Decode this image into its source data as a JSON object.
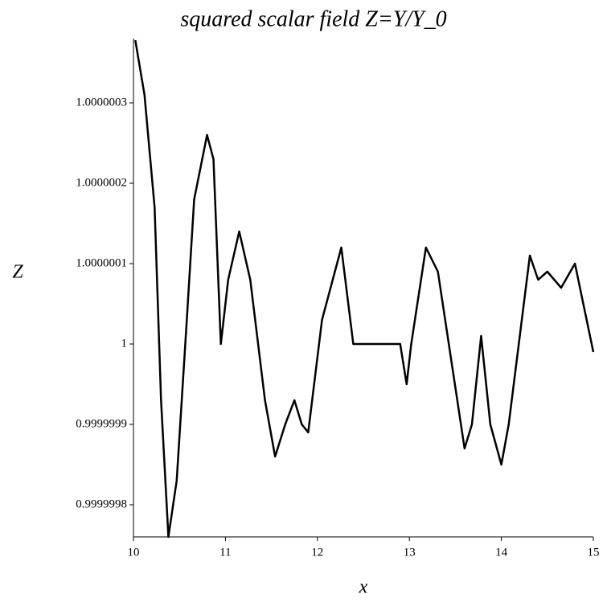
{
  "chart_data": {
    "type": "line",
    "title": "squared scalar field Z=Y/Y_0",
    "xlabel": "x",
    "ylabel": "Z",
    "x": [
      10.02,
      10.12,
      10.23,
      10.3,
      10.38,
      10.47,
      10.58,
      10.66,
      10.8,
      10.87,
      10.95,
      11.03,
      11.15,
      11.27,
      11.43,
      11.54,
      11.65,
      11.75,
      11.83,
      11.9,
      12.05,
      12.26,
      12.39,
      12.65,
      12.9,
      12.97,
      13.02,
      13.18,
      13.31,
      13.6,
      13.68,
      13.78,
      13.88,
      14.0,
      14.08,
      14.31,
      14.4,
      14.5,
      14.65,
      14.8,
      15.0
    ],
    "series": [
      {
        "name": "Z",
        "color": "#000000",
        "values": [
          1.000000378,
          1.00000031,
          1.00000017,
          0.99999993,
          0.99999976,
          0.99999983,
          1.00000003,
          1.00000018,
          1.00000026,
          1.00000023,
          1.0,
          1.00000008,
          1.00000014,
          1.00000008,
          0.99999993,
          0.99999986,
          0.9999999,
          0.99999993,
          0.9999999,
          0.99999989,
          1.00000003,
          1.00000012,
          1.0,
          1.0,
          1.0,
          0.99999995,
          1.0,
          1.00000012,
          1.00000009,
          0.99999987,
          0.9999999,
          1.00000001,
          0.9999999,
          0.99999985,
          0.9999999,
          1.00000011,
          1.00000008,
          1.00000009,
          1.00000007,
          1.0000001,
          0.99999999
        ]
      }
    ],
    "xlim": [
      10,
      15
    ],
    "xticks": [
      10,
      11,
      12,
      13,
      14,
      15
    ],
    "ylim": [
      0.99999976,
      1.00000038
    ],
    "yticks": [
      0.9999998,
      0.9999999,
      1,
      1.0000001,
      1.0000002,
      1.0000003
    ]
  }
}
